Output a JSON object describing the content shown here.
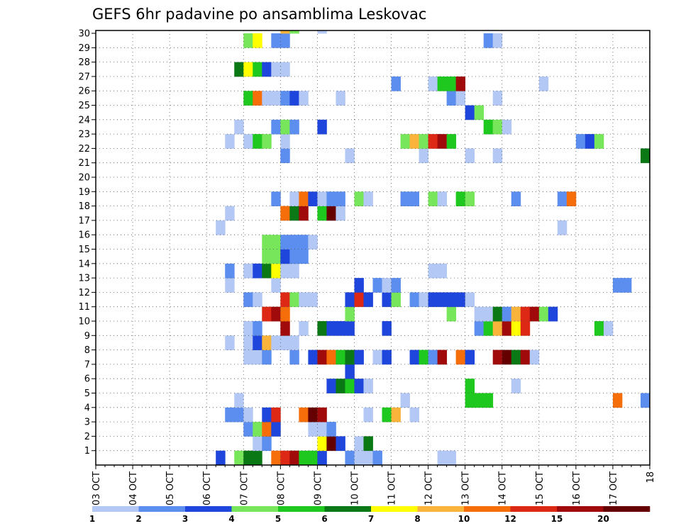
{
  "chart_data": {
    "type": "heatmap",
    "title": "GEFS 6hr padavine po ansamblima Leskovac",
    "y_members": [
      1,
      30
    ],
    "y_ticks": [
      "1",
      "2",
      "3",
      "4",
      "5",
      "6",
      "7",
      "8",
      "9",
      "10",
      "11",
      "12",
      "13",
      "14",
      "15",
      "16",
      "17",
      "18",
      "19",
      "20",
      "21",
      "22",
      "23",
      "24",
      "25",
      "26",
      "27",
      "28",
      "29",
      "30"
    ],
    "x_labels": [
      "03 OCT",
      "04 OCT",
      "05 OCT",
      "06 OCT",
      "07 OCT",
      "08 OCT",
      "09 OCT",
      "10 OCT",
      "11 OCT",
      "12 OCT",
      "13 OCT",
      "14 OCT",
      "15 OCT",
      "16 OCT",
      "17 OCT",
      "18"
    ],
    "x_range_days": [
      0,
      15
    ],
    "grid": true,
    "colorbar": {
      "labels": [
        "1",
        "2",
        "3",
        "4",
        "5",
        "6",
        "7",
        "8",
        "10",
        "12",
        "15",
        "20"
      ],
      "colors": [
        "#b4c8f5",
        "#5c8ef0",
        "#1e46dc",
        "#78e65a",
        "#1ec81e",
        "#0a7814",
        "#ffff00",
        "#fab43c",
        "#f56e0a",
        "#dc2814",
        "#a00a0a",
        "#640000"
      ]
    },
    "cells": [
      [
        0,
        13,
        3
      ],
      [
        0,
        15,
        4
      ],
      [
        0,
        16,
        6
      ],
      [
        0,
        17,
        6
      ],
      [
        0,
        19,
        9
      ],
      [
        0,
        20,
        10
      ],
      [
        0,
        21,
        11
      ],
      [
        0,
        22,
        5
      ],
      [
        0,
        23,
        5
      ],
      [
        0,
        24,
        3
      ],
      [
        0,
        27,
        2
      ],
      [
        0,
        28,
        1
      ],
      [
        0,
        29,
        1
      ],
      [
        0,
        30,
        2
      ],
      [
        0,
        37,
        1
      ],
      [
        0,
        38,
        1
      ],
      [
        1,
        17,
        1
      ],
      [
        1,
        18,
        2
      ],
      [
        1,
        24,
        7
      ],
      [
        1,
        25,
        12
      ],
      [
        1,
        26,
        3
      ],
      [
        1,
        28,
        1
      ],
      [
        1,
        29,
        6
      ],
      [
        2,
        16,
        2
      ],
      [
        2,
        17,
        4
      ],
      [
        2,
        18,
        9
      ],
      [
        2,
        19,
        3
      ],
      [
        2,
        23,
        1
      ],
      [
        2,
        24,
        1
      ],
      [
        2,
        25,
        2
      ],
      [
        3,
        14,
        2
      ],
      [
        3,
        15,
        2
      ],
      [
        3,
        16,
        1
      ],
      [
        3,
        18,
        3
      ],
      [
        3,
        19,
        10
      ],
      [
        3,
        22,
        9
      ],
      [
        3,
        23,
        12
      ],
      [
        3,
        24,
        11
      ],
      [
        3,
        29,
        1
      ],
      [
        3,
        31,
        5
      ],
      [
        3,
        32,
        8
      ],
      [
        3,
        34,
        1
      ],
      [
        4,
        15,
        1
      ],
      [
        4,
        33,
        1
      ],
      [
        4,
        40,
        5
      ],
      [
        4,
        41,
        5
      ],
      [
        4,
        42,
        5
      ],
      [
        4,
        56,
        9
      ],
      [
        4,
        59,
        2
      ],
      [
        5,
        25,
        3
      ],
      [
        5,
        26,
        6
      ],
      [
        5,
        27,
        5
      ],
      [
        5,
        28,
        3
      ],
      [
        5,
        29,
        1
      ],
      [
        5,
        40,
        5
      ],
      [
        5,
        45,
        1
      ],
      [
        6,
        27,
        3
      ],
      [
        7,
        16,
        1
      ],
      [
        7,
        17,
        1
      ],
      [
        7,
        18,
        2
      ],
      [
        7,
        21,
        2
      ],
      [
        7,
        23,
        3
      ],
      [
        7,
        24,
        11
      ],
      [
        7,
        25,
        9
      ],
      [
        7,
        26,
        5
      ],
      [
        7,
        27,
        6
      ],
      [
        7,
        28,
        3
      ],
      [
        7,
        30,
        1
      ],
      [
        7,
        31,
        3
      ],
      [
        7,
        34,
        3
      ],
      [
        7,
        35,
        5
      ],
      [
        7,
        36,
        2
      ],
      [
        7,
        37,
        11
      ],
      [
        7,
        39,
        9
      ],
      [
        7,
        40,
        3
      ],
      [
        7,
        43,
        11
      ],
      [
        7,
        44,
        12
      ],
      [
        7,
        45,
        6
      ],
      [
        7,
        46,
        11
      ],
      [
        7,
        47,
        1
      ],
      [
        8,
        14,
        1
      ],
      [
        8,
        16,
        1
      ],
      [
        8,
        17,
        3
      ],
      [
        8,
        18,
        8
      ],
      [
        8,
        19,
        1
      ],
      [
        8,
        20,
        1
      ],
      [
        8,
        21,
        1
      ],
      [
        9,
        16,
        1
      ],
      [
        9,
        17,
        2
      ],
      [
        9,
        20,
        11
      ],
      [
        9,
        22,
        1
      ],
      [
        9,
        24,
        6
      ],
      [
        9,
        25,
        3
      ],
      [
        9,
        26,
        3
      ],
      [
        9,
        27,
        3
      ],
      [
        9,
        31,
        3
      ],
      [
        9,
        41,
        2
      ],
      [
        9,
        42,
        5
      ],
      [
        9,
        43,
        8
      ],
      [
        9,
        44,
        11
      ],
      [
        9,
        45,
        7
      ],
      [
        9,
        46,
        10
      ],
      [
        9,
        54,
        5
      ],
      [
        9,
        55,
        1
      ],
      [
        10,
        18,
        10
      ],
      [
        10,
        19,
        11
      ],
      [
        10,
        20,
        9
      ],
      [
        10,
        27,
        4
      ],
      [
        10,
        38,
        4
      ],
      [
        10,
        41,
        1
      ],
      [
        10,
        42,
        1
      ],
      [
        10,
        43,
        6
      ],
      [
        10,
        44,
        2
      ],
      [
        10,
        45,
        8
      ],
      [
        10,
        46,
        10
      ],
      [
        10,
        47,
        11
      ],
      [
        10,
        48,
        4
      ],
      [
        10,
        49,
        3
      ],
      [
        11,
        16,
        2
      ],
      [
        11,
        17,
        1
      ],
      [
        11,
        20,
        10
      ],
      [
        11,
        21,
        4
      ],
      [
        11,
        22,
        1
      ],
      [
        11,
        23,
        1
      ],
      [
        11,
        27,
        3
      ],
      [
        11,
        28,
        10
      ],
      [
        11,
        29,
        3
      ],
      [
        11,
        31,
        3
      ],
      [
        11,
        32,
        4
      ],
      [
        11,
        34,
        2
      ],
      [
        11,
        35,
        1
      ],
      [
        11,
        36,
        3
      ],
      [
        11,
        37,
        3
      ],
      [
        11,
        38,
        3
      ],
      [
        11,
        39,
        3
      ],
      [
        11,
        40,
        1
      ],
      [
        12,
        14,
        1
      ],
      [
        12,
        19,
        1
      ],
      [
        12,
        28,
        3
      ],
      [
        12,
        30,
        2
      ],
      [
        12,
        31,
        1
      ],
      [
        12,
        32,
        2
      ],
      [
        12,
        56,
        2
      ],
      [
        12,
        57,
        2
      ],
      [
        13,
        14,
        2
      ],
      [
        13,
        16,
        1
      ],
      [
        13,
        17,
        3
      ],
      [
        13,
        18,
        6
      ],
      [
        13,
        19,
        7
      ],
      [
        13,
        20,
        1
      ],
      [
        13,
        21,
        1
      ],
      [
        13,
        36,
        1
      ],
      [
        13,
        37,
        1
      ],
      [
        14,
        18,
        4
      ],
      [
        14,
        19,
        4
      ],
      [
        14,
        20,
        3
      ],
      [
        14,
        21,
        2
      ],
      [
        14,
        22,
        2
      ],
      [
        15,
        18,
        4
      ],
      [
        15,
        19,
        4
      ],
      [
        15,
        20,
        2
      ],
      [
        15,
        21,
        2
      ],
      [
        15,
        22,
        2
      ],
      [
        15,
        23,
        1
      ],
      [
        16,
        13,
        1
      ],
      [
        16,
        50,
        1
      ],
      [
        17,
        14,
        1
      ],
      [
        17,
        20,
        9
      ],
      [
        17,
        21,
        6
      ],
      [
        17,
        22,
        11
      ],
      [
        17,
        24,
        5
      ],
      [
        17,
        25,
        12
      ],
      [
        17,
        26,
        1
      ],
      [
        18,
        19,
        2
      ],
      [
        18,
        21,
        1
      ],
      [
        18,
        22,
        9
      ],
      [
        18,
        23,
        3
      ],
      [
        18,
        24,
        1
      ],
      [
        18,
        25,
        2
      ],
      [
        18,
        26,
        2
      ],
      [
        18,
        28,
        4
      ],
      [
        18,
        29,
        1
      ],
      [
        18,
        33,
        2
      ],
      [
        18,
        34,
        2
      ],
      [
        18,
        36,
        4
      ],
      [
        18,
        37,
        1
      ],
      [
        18,
        39,
        5
      ],
      [
        18,
        40,
        4
      ],
      [
        18,
        45,
        2
      ],
      [
        18,
        50,
        2
      ],
      [
        18,
        51,
        9
      ],
      [
        21,
        20,
        2
      ],
      [
        21,
        27,
        1
      ],
      [
        21,
        35,
        1
      ],
      [
        21,
        40,
        1
      ],
      [
        21,
        43,
        1
      ],
      [
        21,
        59,
        6
      ],
      [
        21,
        60,
        3
      ],
      [
        22,
        14,
        1
      ],
      [
        22,
        16,
        1
      ],
      [
        22,
        17,
        5
      ],
      [
        22,
        18,
        4
      ],
      [
        22,
        20,
        1
      ],
      [
        22,
        33,
        4
      ],
      [
        22,
        34,
        8
      ],
      [
        22,
        35,
        4
      ],
      [
        22,
        36,
        10
      ],
      [
        22,
        37,
        11
      ],
      [
        22,
        38,
        5
      ],
      [
        22,
        52,
        2
      ],
      [
        22,
        53,
        3
      ],
      [
        22,
        54,
        4
      ],
      [
        23,
        15,
        1
      ],
      [
        23,
        19,
        2
      ],
      [
        23,
        20,
        4
      ],
      [
        23,
        21,
        2
      ],
      [
        23,
        24,
        3
      ],
      [
        23,
        42,
        5
      ],
      [
        23,
        43,
        4
      ],
      [
        23,
        44,
        1
      ],
      [
        24,
        40,
        3
      ],
      [
        24,
        41,
        4
      ],
      [
        25,
        16,
        5
      ],
      [
        25,
        17,
        9
      ],
      [
        25,
        18,
        1
      ],
      [
        25,
        19,
        1
      ],
      [
        25,
        20,
        2
      ],
      [
        25,
        21,
        3
      ],
      [
        25,
        22,
        1
      ],
      [
        25,
        26,
        1
      ],
      [
        25,
        38,
        2
      ],
      [
        25,
        39,
        1
      ],
      [
        25,
        43,
        1
      ],
      [
        26,
        32,
        2
      ],
      [
        26,
        36,
        1
      ],
      [
        26,
        37,
        5
      ],
      [
        26,
        38,
        5
      ],
      [
        26,
        39,
        11
      ],
      [
        26,
        48,
        1
      ],
      [
        27,
        15,
        6
      ],
      [
        27,
        16,
        7
      ],
      [
        27,
        17,
        5
      ],
      [
        27,
        18,
        3
      ],
      [
        27,
        19,
        1
      ],
      [
        27,
        20,
        1
      ],
      [
        29,
        16,
        4
      ],
      [
        29,
        17,
        7
      ],
      [
        29,
        19,
        2
      ],
      [
        29,
        20,
        2
      ],
      [
        29,
        42,
        2
      ],
      [
        29,
        43,
        1
      ],
      [
        30,
        20,
        8
      ],
      [
        30,
        21,
        4
      ],
      [
        30,
        24,
        1
      ]
    ]
  }
}
